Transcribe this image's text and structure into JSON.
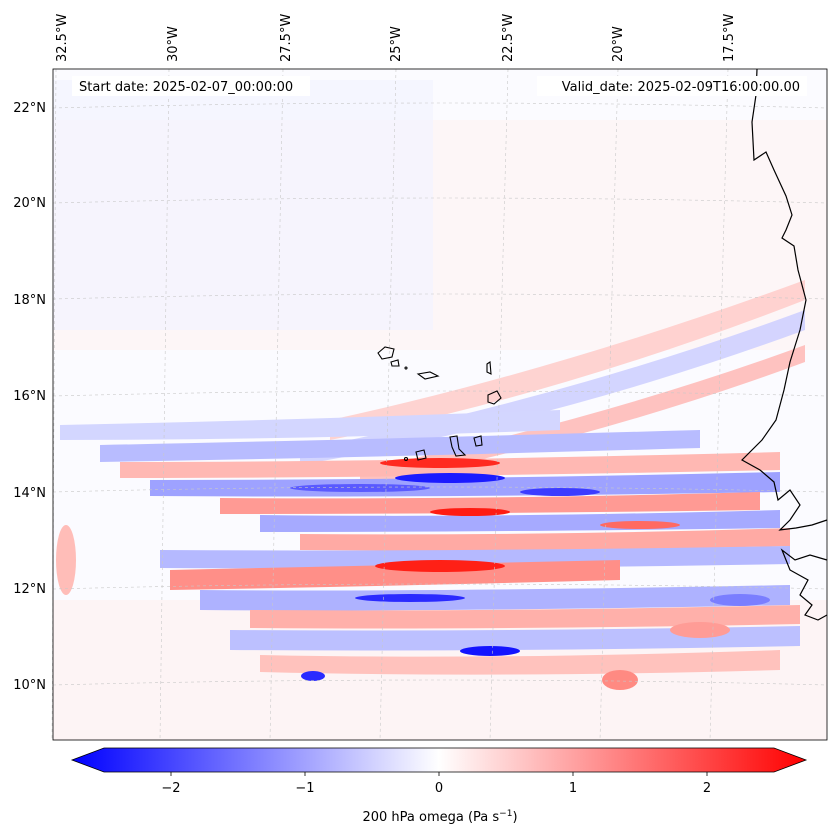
{
  "header": {
    "start_date": "Start date: 2025-02-07_00:00:00",
    "valid_date": "Valid_date: 2025-02-09T16:00:00.00"
  },
  "axes": {
    "lon_labels": [
      "32.5°W",
      "30°W",
      "27.5°W",
      "25°W",
      "22.5°W",
      "20°W",
      "17.5°W"
    ],
    "lat_labels": [
      "22°N",
      "20°N",
      "18°N",
      "16°N",
      "14°N",
      "12°N",
      "10°N"
    ]
  },
  "colorbar": {
    "label": "200 hPa omega (Pa s",
    "label_exp": "−1",
    "label_end": ")",
    "ticks": [
      "−2",
      "−1",
      "0",
      "1",
      "2"
    ],
    "tick_values": [
      -2,
      -1,
      0,
      1,
      2
    ],
    "vmin": -2.5,
    "vmax": 2.5,
    "neg_color": "#0000ff",
    "mid_color": "#ffffff",
    "pos_color": "#ff0000"
  },
  "chart_data": {
    "type": "heatmap",
    "variable": "200 hPa omega",
    "units": "Pa s^-1",
    "lon_range": [
      -33,
      -15
    ],
    "lat_range": [
      9,
      22.8
    ],
    "value_range": [
      -2.5,
      2.5
    ],
    "colormap": "bwr"
  }
}
